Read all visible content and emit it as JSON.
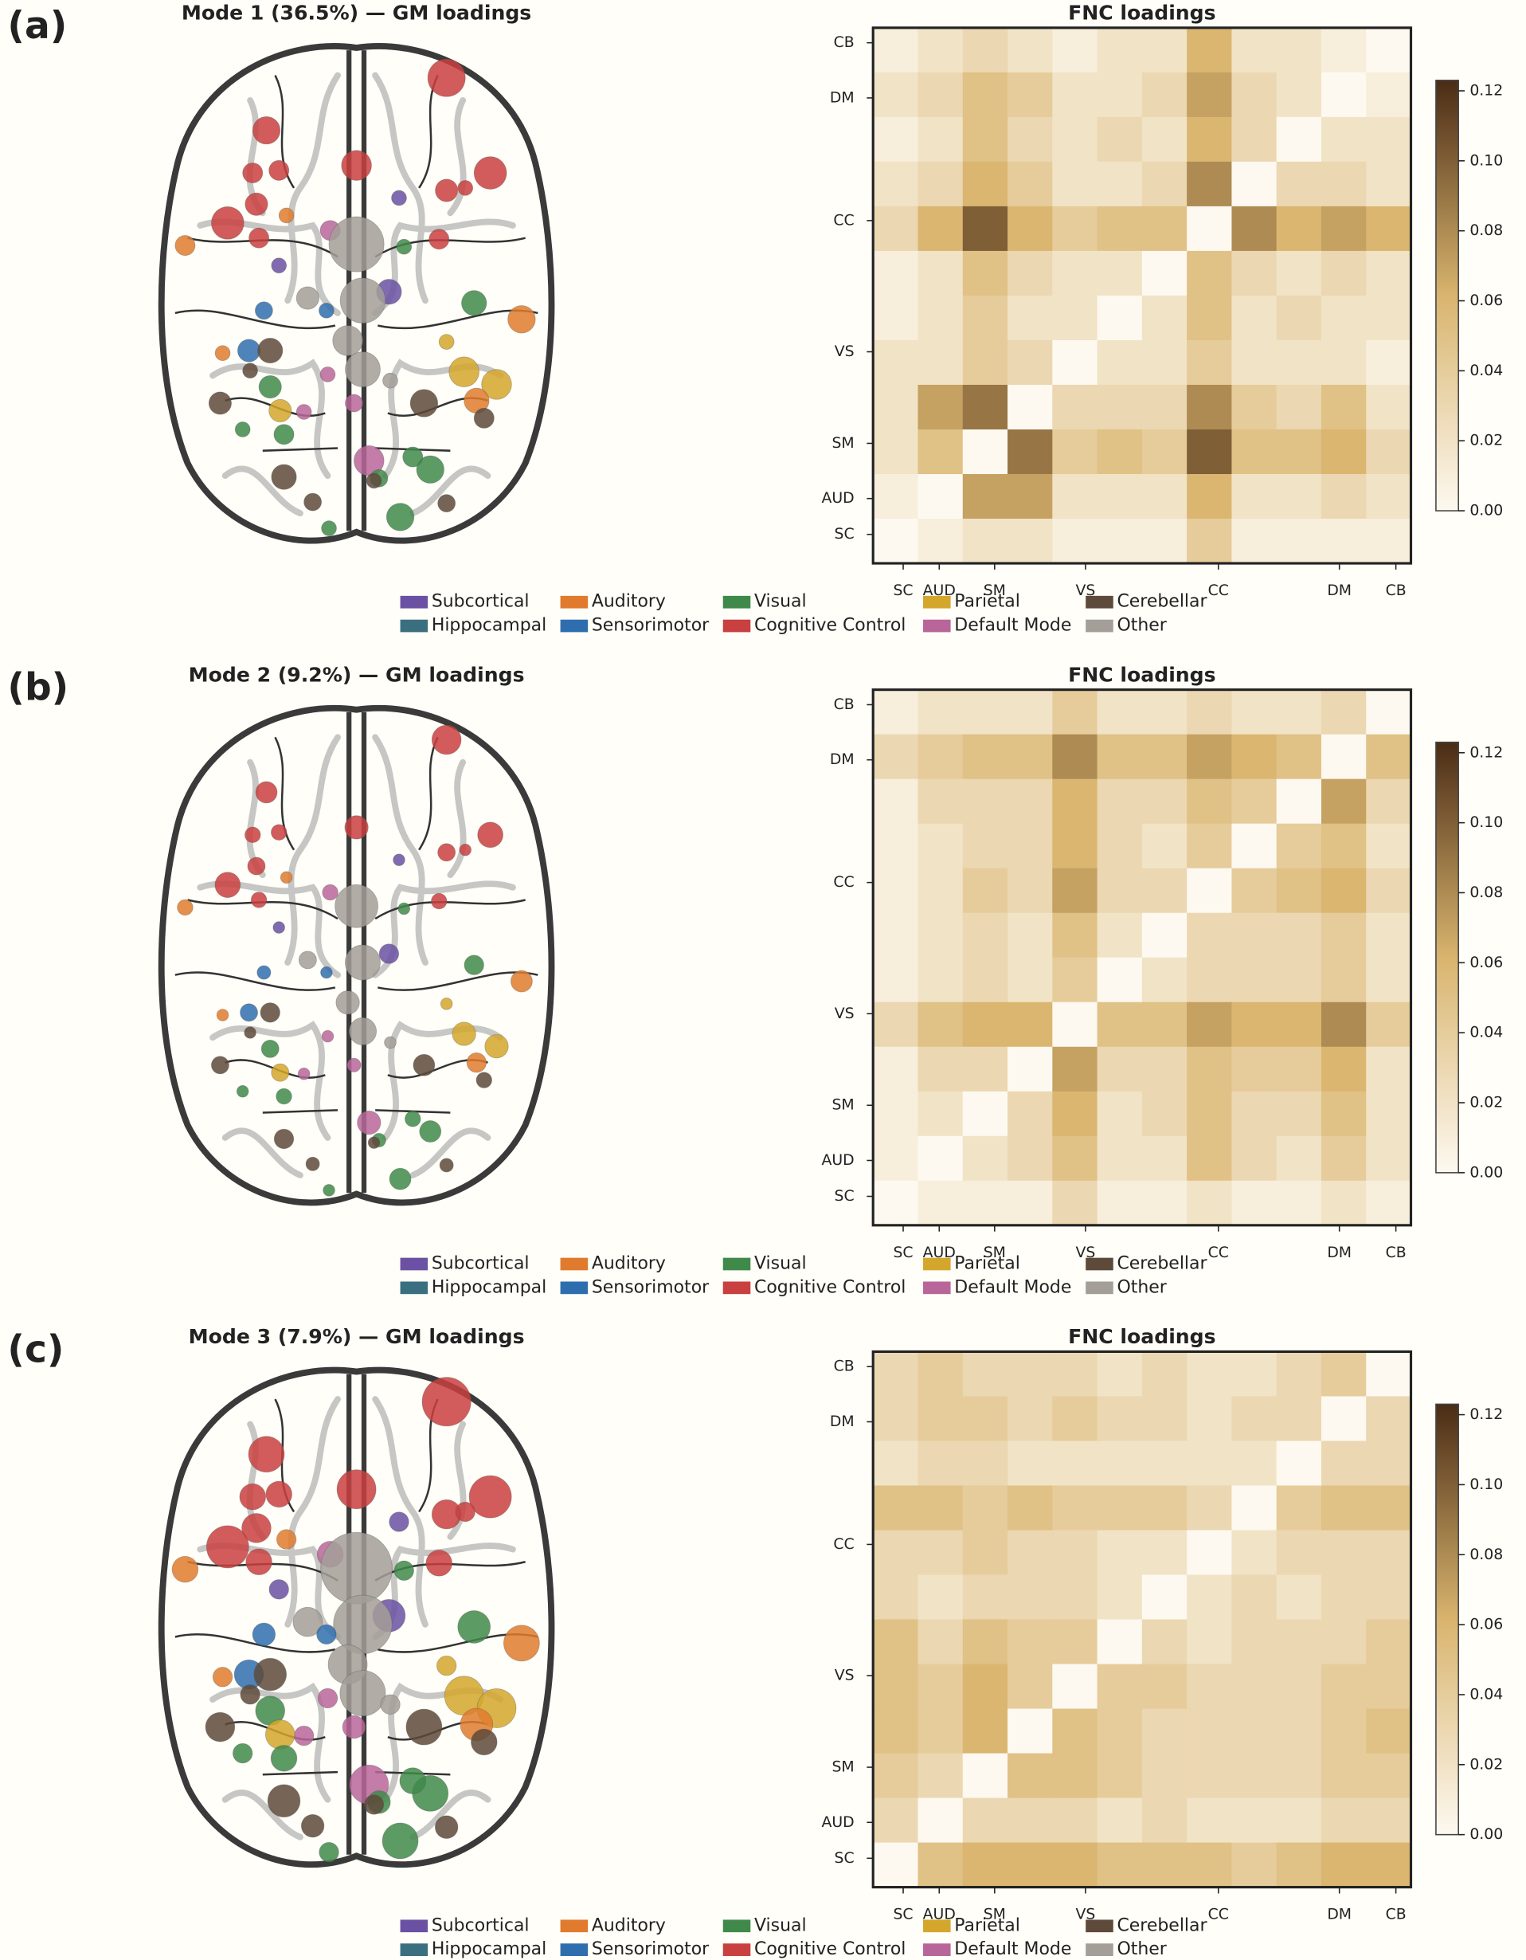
{
  "chart_data": [
    {
      "type": "heatmap",
      "panel_label": "(a)",
      "gm_title": "Mode 1 (36.5%) — GM loadings",
      "title": "FNC loadings",
      "x_labels": [
        "SC",
        "AUD",
        "SM",
        "VS",
        "CC",
        "DM",
        "CB"
      ],
      "y_labels": [
        "CB",
        "DM",
        "CC",
        "VS",
        "SM",
        "AUD",
        "SC"
      ],
      "z": [
        [
          0.01,
          0.02,
          0.03,
          0.02,
          0.01,
          0.02,
          0.02,
          0.06,
          0.02,
          0.02,
          0.01,
          0.0
        ],
        [
          0.02,
          0.03,
          0.05,
          0.04,
          0.02,
          0.02,
          0.03,
          0.07,
          0.03,
          0.02,
          0.0,
          0.01
        ],
        [
          0.01,
          0.02,
          0.05,
          0.03,
          0.02,
          0.03,
          0.02,
          0.06,
          0.03,
          0.0,
          0.02,
          0.02
        ],
        [
          0.02,
          0.03,
          0.06,
          0.04,
          0.02,
          0.02,
          0.03,
          0.08,
          0.0,
          0.03,
          0.03,
          0.02
        ],
        [
          0.03,
          0.06,
          0.1,
          0.06,
          0.04,
          0.05,
          0.05,
          0.0,
          0.08,
          0.06,
          0.07,
          0.06
        ],
        [
          0.01,
          0.02,
          0.05,
          0.03,
          0.02,
          0.02,
          0.0,
          0.05,
          0.03,
          0.02,
          0.03,
          0.02
        ],
        [
          0.01,
          0.02,
          0.04,
          0.02,
          0.02,
          0.0,
          0.02,
          0.05,
          0.02,
          0.03,
          0.02,
          0.02
        ],
        [
          0.02,
          0.02,
          0.04,
          0.03,
          0.0,
          0.02,
          0.02,
          0.04,
          0.02,
          0.02,
          0.02,
          0.01
        ],
        [
          0.02,
          0.07,
          0.09,
          0.0,
          0.03,
          0.03,
          0.03,
          0.08,
          0.04,
          0.03,
          0.05,
          0.02
        ],
        [
          0.02,
          0.05,
          0.0,
          0.09,
          0.04,
          0.05,
          0.04,
          0.1,
          0.05,
          0.05,
          0.06,
          0.03
        ],
        [
          0.01,
          0.0,
          0.07,
          0.07,
          0.02,
          0.02,
          0.02,
          0.06,
          0.02,
          0.02,
          0.03,
          0.02
        ],
        [
          0.0,
          0.01,
          0.02,
          0.02,
          0.01,
          0.01,
          0.01,
          0.04,
          0.01,
          0.01,
          0.01,
          0.01
        ]
      ],
      "clim": [
        0,
        0.123
      ],
      "colorbar_ticks": [
        {
          "value": 0,
          "label": "0.00"
        },
        {
          "value": 0.02,
          "label": "0.02"
        },
        {
          "value": 0.04,
          "label": "0.04"
        },
        {
          "value": 0.06,
          "label": "0.06"
        },
        {
          "value": 0.08,
          "label": "0.08"
        },
        {
          "value": 0.1,
          "label": "0.10"
        },
        {
          "value": 0.12,
          "label": "0.12"
        }
      ],
      "legend": [
        {
          "name": "Subcortical",
          "color": "#6a51a3"
        },
        {
          "name": "Hippocampal",
          "color": "#3a6f7f"
        },
        {
          "name": "Auditory",
          "color": "#e07b2e"
        },
        {
          "name": "Sensorimotor",
          "color": "#2f6eae"
        },
        {
          "name": "Visual",
          "color": "#3f8a4a"
        },
        {
          "name": "Cognitive Control",
          "color": "#c94040"
        },
        {
          "name": "Parietal",
          "color": "#d4a72c"
        },
        {
          "name": "Default Mode",
          "color": "#b8669a"
        },
        {
          "name": "Cerebellar",
          "color": "#5e4a3a"
        },
        {
          "name": "Other",
          "color": "#a39e98"
        }
      ]
    },
    {
      "type": "heatmap",
      "panel_label": "(b)",
      "gm_title": "Mode 2 (9.2%) — GM loadings",
      "title": "FNC loadings",
      "x_labels": [
        "SC",
        "AUD",
        "SM",
        "VS",
        "CC",
        "DM",
        "CB"
      ],
      "y_labels": [
        "CB",
        "DM",
        "CC",
        "VS",
        "SM",
        "AUD",
        "SC"
      ],
      "z": [
        [
          0.01,
          0.02,
          0.02,
          0.02,
          0.04,
          0.02,
          0.02,
          0.03,
          0.02,
          0.02,
          0.03,
          0.0
        ],
        [
          0.03,
          0.04,
          0.05,
          0.05,
          0.08,
          0.05,
          0.05,
          0.07,
          0.06,
          0.05,
          0.0,
          0.05
        ],
        [
          0.01,
          0.03,
          0.03,
          0.03,
          0.06,
          0.03,
          0.03,
          0.05,
          0.04,
          0.0,
          0.07,
          0.03
        ],
        [
          0.01,
          0.02,
          0.03,
          0.03,
          0.06,
          0.03,
          0.02,
          0.04,
          0.0,
          0.04,
          0.05,
          0.02
        ],
        [
          0.01,
          0.02,
          0.04,
          0.03,
          0.07,
          0.03,
          0.03,
          0.0,
          0.04,
          0.05,
          0.06,
          0.03
        ],
        [
          0.01,
          0.02,
          0.03,
          0.02,
          0.05,
          0.02,
          0.0,
          0.03,
          0.03,
          0.03,
          0.04,
          0.02
        ],
        [
          0.01,
          0.02,
          0.03,
          0.02,
          0.04,
          0.0,
          0.02,
          0.03,
          0.03,
          0.03,
          0.04,
          0.02
        ],
        [
          0.03,
          0.05,
          0.06,
          0.06,
          0.0,
          0.05,
          0.05,
          0.07,
          0.06,
          0.06,
          0.08,
          0.04
        ],
        [
          0.01,
          0.03,
          0.03,
          0.0,
          0.07,
          0.03,
          0.03,
          0.05,
          0.04,
          0.04,
          0.06,
          0.02
        ],
        [
          0.01,
          0.02,
          0.0,
          0.03,
          0.06,
          0.02,
          0.03,
          0.05,
          0.03,
          0.03,
          0.05,
          0.02
        ],
        [
          0.01,
          0.0,
          0.02,
          0.03,
          0.05,
          0.02,
          0.02,
          0.05,
          0.03,
          0.02,
          0.04,
          0.02
        ],
        [
          0.0,
          0.01,
          0.01,
          0.01,
          0.03,
          0.01,
          0.01,
          0.02,
          0.01,
          0.01,
          0.02,
          0.01
        ]
      ],
      "clim": [
        0,
        0.123
      ],
      "colorbar_ticks": [
        {
          "value": 0,
          "label": "0.00"
        },
        {
          "value": 0.02,
          "label": "0.02"
        },
        {
          "value": 0.04,
          "label": "0.04"
        },
        {
          "value": 0.06,
          "label": "0.06"
        },
        {
          "value": 0.08,
          "label": "0.08"
        },
        {
          "value": 0.1,
          "label": "0.10"
        },
        {
          "value": 0.12,
          "label": "0.12"
        }
      ],
      "legend": [
        {
          "name": "Subcortical",
          "color": "#6a51a3"
        },
        {
          "name": "Hippocampal",
          "color": "#3a6f7f"
        },
        {
          "name": "Auditory",
          "color": "#e07b2e"
        },
        {
          "name": "Sensorimotor",
          "color": "#2f6eae"
        },
        {
          "name": "Visual",
          "color": "#3f8a4a"
        },
        {
          "name": "Cognitive Control",
          "color": "#c94040"
        },
        {
          "name": "Parietal",
          "color": "#d4a72c"
        },
        {
          "name": "Default Mode",
          "color": "#b8669a"
        },
        {
          "name": "Cerebellar",
          "color": "#5e4a3a"
        },
        {
          "name": "Other",
          "color": "#a39e98"
        }
      ]
    },
    {
      "type": "heatmap",
      "panel_label": "(c)",
      "gm_title": "Mode 3 (7.9%) — GM loadings",
      "title": "FNC loadings",
      "x_labels": [
        "SC",
        "AUD",
        "SM",
        "VS",
        "CC",
        "DM",
        "CB"
      ],
      "y_labels": [
        "CB",
        "DM",
        "CC",
        "VS",
        "SM",
        "AUD",
        "SC"
      ],
      "z": [
        [
          0.03,
          0.04,
          0.03,
          0.03,
          0.03,
          0.02,
          0.03,
          0.02,
          0.02,
          0.03,
          0.04,
          0.0
        ],
        [
          0.03,
          0.04,
          0.04,
          0.03,
          0.04,
          0.03,
          0.03,
          0.02,
          0.03,
          0.03,
          0.0,
          0.03
        ],
        [
          0.02,
          0.03,
          0.03,
          0.02,
          0.02,
          0.02,
          0.02,
          0.02,
          0.02,
          0.0,
          0.03,
          0.03
        ],
        [
          0.05,
          0.05,
          0.04,
          0.05,
          0.04,
          0.04,
          0.04,
          0.03,
          0.0,
          0.04,
          0.05,
          0.05
        ],
        [
          0.03,
          0.03,
          0.04,
          0.03,
          0.03,
          0.02,
          0.02,
          0.0,
          0.02,
          0.03,
          0.03,
          0.03
        ],
        [
          0.03,
          0.02,
          0.03,
          0.03,
          0.03,
          0.02,
          0.0,
          0.02,
          0.03,
          0.02,
          0.03,
          0.03
        ],
        [
          0.05,
          0.03,
          0.05,
          0.04,
          0.04,
          0.0,
          0.03,
          0.02,
          0.03,
          0.03,
          0.03,
          0.04
        ],
        [
          0.05,
          0.04,
          0.06,
          0.04,
          0.0,
          0.04,
          0.04,
          0.03,
          0.03,
          0.03,
          0.04,
          0.04
        ],
        [
          0.05,
          0.04,
          0.06,
          0.0,
          0.05,
          0.04,
          0.03,
          0.03,
          0.03,
          0.03,
          0.04,
          0.05
        ],
        [
          0.04,
          0.03,
          0.0,
          0.05,
          0.05,
          0.04,
          0.03,
          0.03,
          0.03,
          0.03,
          0.04,
          0.04
        ],
        [
          0.03,
          0.0,
          0.03,
          0.03,
          0.03,
          0.02,
          0.03,
          0.02,
          0.02,
          0.02,
          0.03,
          0.03
        ],
        [
          0.0,
          0.05,
          0.06,
          0.06,
          0.06,
          0.05,
          0.05,
          0.05,
          0.04,
          0.05,
          0.06,
          0.06
        ]
      ],
      "clim": [
        0,
        0.123
      ],
      "colorbar_ticks": [
        {
          "value": 0,
          "label": "0.00"
        },
        {
          "value": 0.02,
          "label": "0.02"
        },
        {
          "value": 0.04,
          "label": "0.04"
        },
        {
          "value": 0.06,
          "label": "0.06"
        },
        {
          "value": 0.08,
          "label": "0.08"
        },
        {
          "value": 0.1,
          "label": "0.10"
        },
        {
          "value": 0.12,
          "label": "0.12"
        }
      ],
      "legend": [
        {
          "name": "Subcortical",
          "color": "#6a51a3"
        },
        {
          "name": "Hippocampal",
          "color": "#3a6f7f"
        },
        {
          "name": "Auditory",
          "color": "#e07b2e"
        },
        {
          "name": "Sensorimotor",
          "color": "#2f6eae"
        },
        {
          "name": "Visual",
          "color": "#3f8a4a"
        },
        {
          "name": "Cognitive Control",
          "color": "#c94040"
        },
        {
          "name": "Parietal",
          "color": "#d4a72c"
        },
        {
          "name": "Default Mode",
          "color": "#b8669a"
        },
        {
          "name": "Cerebellar",
          "color": "#5e4a3a"
        },
        {
          "name": "Other",
          "color": "#a39e98"
        }
      ]
    }
  ]
}
